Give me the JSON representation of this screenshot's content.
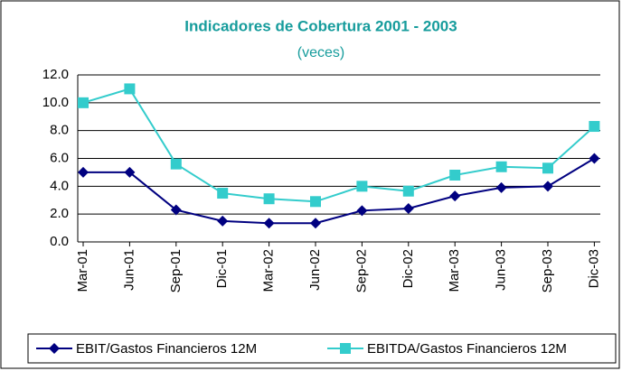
{
  "chart_data": {
    "type": "line",
    "title": "Indicadores de Cobertura 2001 - 2003",
    "subtitle": "(veces)",
    "categories": [
      "Mar-01",
      "Jun-01",
      "Sep-01",
      "Dic-01",
      "Mar-02",
      "Jun-02",
      "Sep-02",
      "Dic-02",
      "Mar-03",
      "Jun-03",
      "Sep-03",
      "Dic-03"
    ],
    "series": [
      {
        "name": "EBIT/Gastos Financieros 12M",
        "color": "#000080",
        "marker": "diamond",
        "values": [
          5.0,
          5.0,
          2.3,
          1.5,
          1.35,
          1.35,
          2.25,
          2.4,
          3.3,
          3.9,
          4.0,
          6.0
        ]
      },
      {
        "name": "EBITDA/Gastos Financieros 12M",
        "color": "#33cccc",
        "marker": "square",
        "values": [
          10.0,
          11.0,
          5.6,
          3.5,
          3.1,
          2.9,
          4.0,
          3.65,
          4.8,
          5.4,
          5.3,
          8.3
        ]
      }
    ],
    "ylim": [
      0,
      12
    ],
    "yticks": [
      {
        "value": 0,
        "label": "0.0"
      },
      {
        "value": 2,
        "label": "2.0"
      },
      {
        "value": 4,
        "label": "4.0"
      },
      {
        "value": 6,
        "label": "6.0"
      },
      {
        "value": 8,
        "label": "8.0"
      },
      {
        "value": 10,
        "label": "10.0"
      },
      {
        "value": 12,
        "label": "12.0"
      }
    ],
    "grid": true,
    "legend": "bottom"
  }
}
